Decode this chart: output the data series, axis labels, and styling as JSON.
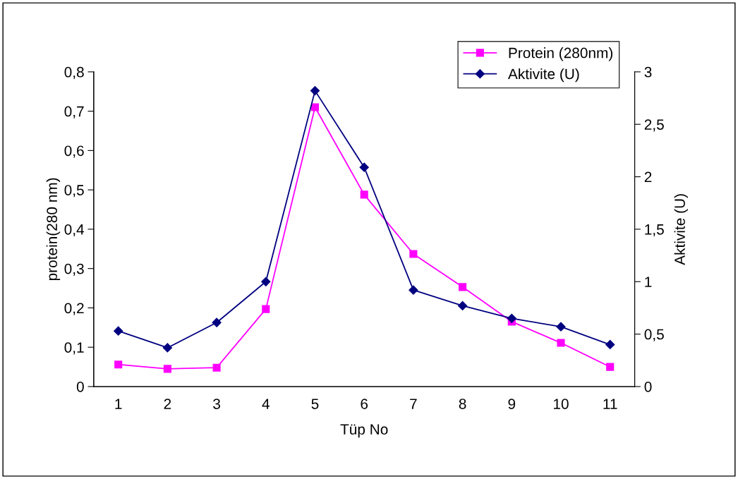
{
  "chart_data": {
    "type": "line",
    "xlabel": "Tüp No",
    "ylabel": "protein(280 nm)",
    "y2label": "Aktivite (U)",
    "categories": [
      "1",
      "2",
      "3",
      "4",
      "5",
      "6",
      "7",
      "8",
      "9",
      "10",
      "11"
    ],
    "series": [
      {
        "name": "Protein (280nm)",
        "color": "#ff00ff",
        "marker": "square",
        "values": [
          0.056,
          0.045,
          0.048,
          0.197,
          0.71,
          0.488,
          0.337,
          0.253,
          0.165,
          0.111,
          0.05
        ]
      },
      {
        "name": "Aktivite (U)",
        "color": "#000080",
        "marker": "diamond",
        "axis": "y2",
        "values": [
          0.53,
          0.37,
          0.61,
          1.0,
          2.82,
          2.09,
          0.92,
          0.77,
          0.65,
          0.57,
          0.4
        ]
      }
    ],
    "ylim": [
      0,
      0.8
    ],
    "yticks": [
      0,
      {
        "value": 0.1,
        "label": "0,1"
      },
      {
        "value": 0.2,
        "label": "0,2"
      },
      {
        "value": 0.3,
        "label": "0,3"
      },
      {
        "value": 0.4,
        "label": "0,4"
      },
      {
        "value": 0.5,
        "label": "0,5"
      },
      {
        "value": 0.6,
        "label": "0,6"
      },
      {
        "value": 0.7,
        "label": "0,7"
      },
      {
        "value": 0.8,
        "label": "0,8"
      }
    ],
    "y2lim": [
      0,
      3
    ],
    "y2ticks": [
      0,
      {
        "value": 0.5,
        "label": "0,5"
      },
      1,
      {
        "value": 1.5,
        "label": "1,5"
      },
      2,
      {
        "value": 2.5,
        "label": "2,5"
      },
      3
    ],
    "legend": "top right",
    "grid": false,
    "line_style": "solid"
  }
}
